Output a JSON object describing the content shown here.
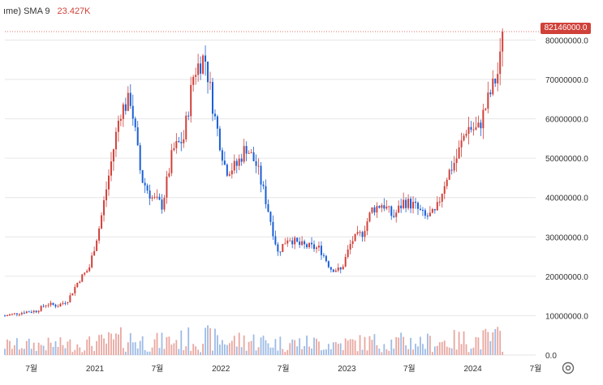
{
  "legend": {
    "prefix": "ıme)",
    "name": "SMA 9",
    "value": "23.427K"
  },
  "last_price_label": "82146000.0",
  "icons": {
    "settings": "gear-icon"
  },
  "colors": {
    "up": "#d0413a",
    "down": "#1a5fd6",
    "vol_up": "#e8a7a0",
    "vol_down": "#9dbbe6",
    "grid": "#e6e6e6"
  },
  "chart_data": {
    "type": "candlestick",
    "ylabels": [
      "80000000.0",
      "70000000.0",
      "60000000.0",
      "50000000.0",
      "40000000.0",
      "30000000.0",
      "20000000.0",
      "10000000.0",
      "0.0"
    ],
    "yticks": [
      80000000,
      70000000,
      60000000,
      50000000,
      40000000,
      30000000,
      20000000,
      10000000,
      0
    ],
    "ylim": [
      0,
      84000000
    ],
    "xlabels": [
      "7월",
      "2021",
      "7월",
      "2022",
      "7월",
      "2023",
      "7월",
      "2024",
      "7월"
    ],
    "xtick_dates": [
      "2020-07-01",
      "2021-01-01",
      "2021-07-01",
      "2022-01-01",
      "2022-07-01",
      "2023-01-01",
      "2023-07-01",
      "2024-01-01",
      "2024-07-01"
    ],
    "xlim": [
      "2020-04-15",
      "2024-07-01"
    ],
    "last_value": 82146000,
    "series": [
      {
        "close": [
          [
            "2020-04-15",
            10000000
          ],
          [
            "2020-05-15",
            10500000
          ],
          [
            "2020-06-15",
            11000000
          ],
          [
            "2020-07-15",
            11200000
          ],
          [
            "2020-08-15",
            13000000
          ],
          [
            "2020-09-15",
            12500000
          ],
          [
            "2020-10-15",
            14000000
          ],
          [
            "2020-11-15",
            19000000
          ],
          [
            "2020-12-15",
            22000000
          ],
          [
            "2021-01-15",
            33000000
          ],
          [
            "2021-02-15",
            48000000
          ],
          [
            "2021-03-15",
            62000000
          ],
          [
            "2021-04-15",
            65000000
          ],
          [
            "2021-05-15",
            45000000
          ],
          [
            "2021-06-15",
            40000000
          ],
          [
            "2021-07-15",
            38000000
          ],
          [
            "2021-08-15",
            52000000
          ],
          [
            "2021-09-15",
            55000000
          ],
          [
            "2021-10-15",
            72000000
          ],
          [
            "2021-11-15",
            76000000
          ],
          [
            "2021-12-15",
            60000000
          ],
          [
            "2022-01-15",
            47000000
          ],
          [
            "2022-02-15",
            48000000
          ],
          [
            "2022-03-15",
            53000000
          ],
          [
            "2022-04-15",
            48000000
          ],
          [
            "2022-05-15",
            38000000
          ],
          [
            "2022-06-15",
            26000000
          ],
          [
            "2022-07-15",
            30000000
          ],
          [
            "2022-08-15",
            28000000
          ],
          [
            "2022-09-15",
            27500000
          ],
          [
            "2022-10-15",
            27000000
          ],
          [
            "2022-11-15",
            22000000
          ],
          [
            "2022-12-15",
            21500000
          ],
          [
            "2023-01-15",
            29000000
          ],
          [
            "2023-02-15",
            31000000
          ],
          [
            "2023-03-15",
            37000000
          ],
          [
            "2023-04-15",
            38500000
          ],
          [
            "2023-05-15",
            35000000
          ],
          [
            "2023-06-15",
            39000000
          ],
          [
            "2023-07-15",
            38000000
          ],
          [
            "2023-08-15",
            35000000
          ],
          [
            "2023-09-15",
            36000000
          ],
          [
            "2023-10-15",
            45000000
          ],
          [
            "2023-11-15",
            50000000
          ],
          [
            "2023-12-15",
            58000000
          ],
          [
            "2024-01-15",
            57000000
          ],
          [
            "2024-02-15",
            65000000
          ],
          [
            "2024-03-15",
            72000000
          ],
          [
            "2024-04-01",
            82146000
          ]
        ]
      }
    ]
  }
}
